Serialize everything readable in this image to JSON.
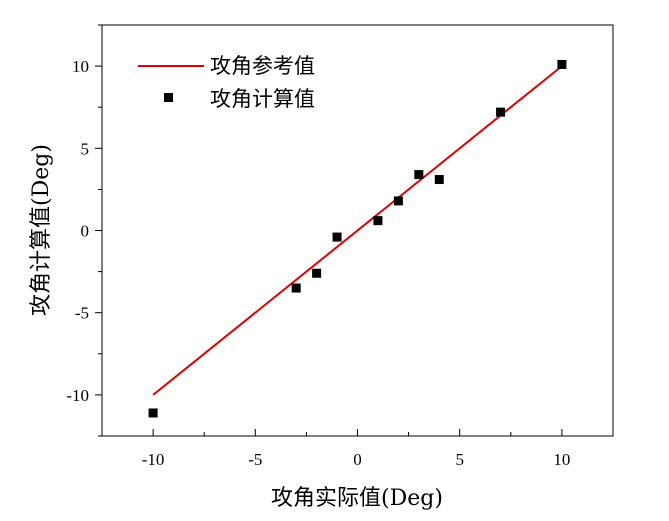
{
  "chart_data": {
    "type": "scatter",
    "xlabel": "攻角实际值(Deg)",
    "ylabel": "攻角计算值(Deg)",
    "xlim": [
      -12.5,
      12.5
    ],
    "ylim": [
      -12.5,
      12.5
    ],
    "xticks": [
      -10,
      -5,
      0,
      5,
      10
    ],
    "yticks": [
      -10,
      -5,
      0,
      5,
      10
    ],
    "grid": false,
    "legend_position": "top-left",
    "series": [
      {
        "name": "攻角参考值",
        "kind": "line",
        "color": "#e00000",
        "x": [
          -10,
          10
        ],
        "y": [
          -10,
          10
        ]
      },
      {
        "name": "攻角计算值",
        "kind": "scatter",
        "marker": "square",
        "color": "#000000",
        "x": [
          -10,
          -3,
          -2,
          -1,
          1,
          2,
          3,
          4,
          7,
          10
        ],
        "y": [
          -11.1,
          -3.5,
          -2.6,
          -0.4,
          0.6,
          1.8,
          3.4,
          3.1,
          7.2,
          10.1
        ]
      }
    ]
  }
}
